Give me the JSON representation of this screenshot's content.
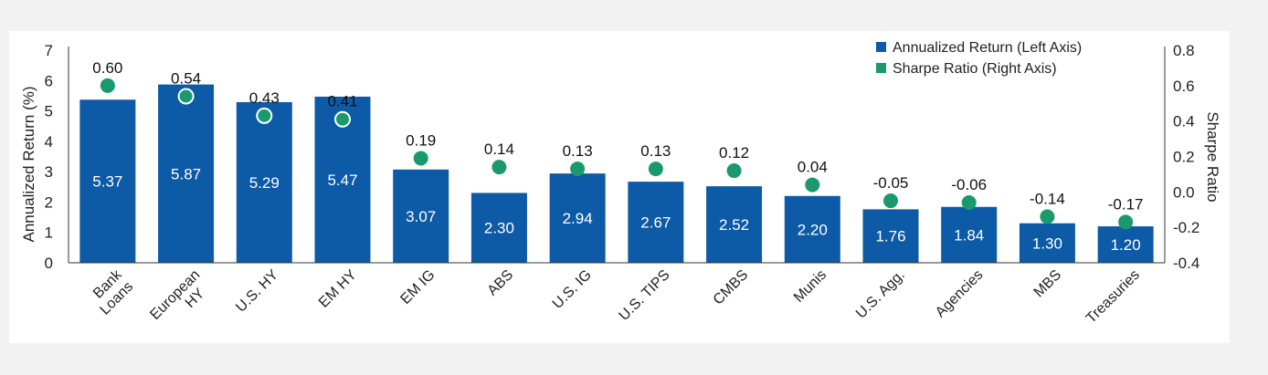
{
  "chart_data": {
    "type": "bar",
    "categories": [
      "Bank Loans",
      "European HY",
      "U.S. HY",
      "EM HY",
      "EM IG",
      "ABS",
      "U.S. IG",
      "U.S. TIPS",
      "CMBS",
      "Munis",
      "U.S. Agg.",
      "Agencies",
      "MBS",
      "Treasuries"
    ],
    "category_lines": [
      [
        "Bank",
        "Loans"
      ],
      [
        "European",
        "HY"
      ],
      [
        "U.S. HY"
      ],
      [
        "EM HY"
      ],
      [
        "EM IG"
      ],
      [
        "ABS"
      ],
      [
        "U.S. IG"
      ],
      [
        "U.S. TIPS"
      ],
      [
        "CMBS"
      ],
      [
        "Munis"
      ],
      [
        "U.S. Agg."
      ],
      [
        "Agencies"
      ],
      [
        "MBS"
      ],
      [
        "Treasuries"
      ]
    ],
    "series": [
      {
        "name": "Annualized Return (Left Axis)",
        "axis": "left",
        "type": "bar",
        "color": "#0d5aa7",
        "values": [
          5.37,
          5.87,
          5.29,
          5.47,
          3.07,
          2.3,
          2.94,
          2.67,
          2.52,
          2.2,
          1.76,
          1.84,
          1.3,
          1.2
        ],
        "labels": [
          "5.37",
          "5.87",
          "5.29",
          "5.47",
          "3.07",
          "2.30",
          "2.94",
          "2.67",
          "2.52",
          "2.20",
          "1.76",
          "1.84",
          "1.30",
          "1.20"
        ]
      },
      {
        "name": "Sharpe Ratio (Right Axis)",
        "axis": "right",
        "type": "scatter",
        "color": "#1a9a6c",
        "values": [
          0.6,
          0.54,
          0.43,
          0.41,
          0.19,
          0.14,
          0.13,
          0.13,
          0.12,
          0.04,
          -0.05,
          -0.06,
          -0.14,
          -0.17
        ],
        "labels": [
          "0.60",
          "0.54",
          "0.43",
          "0.41",
          "0.19",
          "0.14",
          "0.13",
          "0.13",
          "0.12",
          "0.04",
          "-0.05",
          "-0.06",
          "-0.14",
          "-0.17"
        ]
      }
    ],
    "ylabel": "Annualized Return (%)",
    "y2label": "Sharpe Ratio",
    "ylim": [
      0,
      7
    ],
    "y2lim": [
      -0.4,
      0.8
    ],
    "yticks": [
      "0",
      "1",
      "2",
      "3",
      "4",
      "5",
      "6",
      "7"
    ],
    "y2ticks": [
      "-0.4",
      "-0.2",
      "0.0",
      "0.2",
      "0.4",
      "0.6",
      "0.8"
    ],
    "grid": false,
    "legend_position": "top-right"
  }
}
